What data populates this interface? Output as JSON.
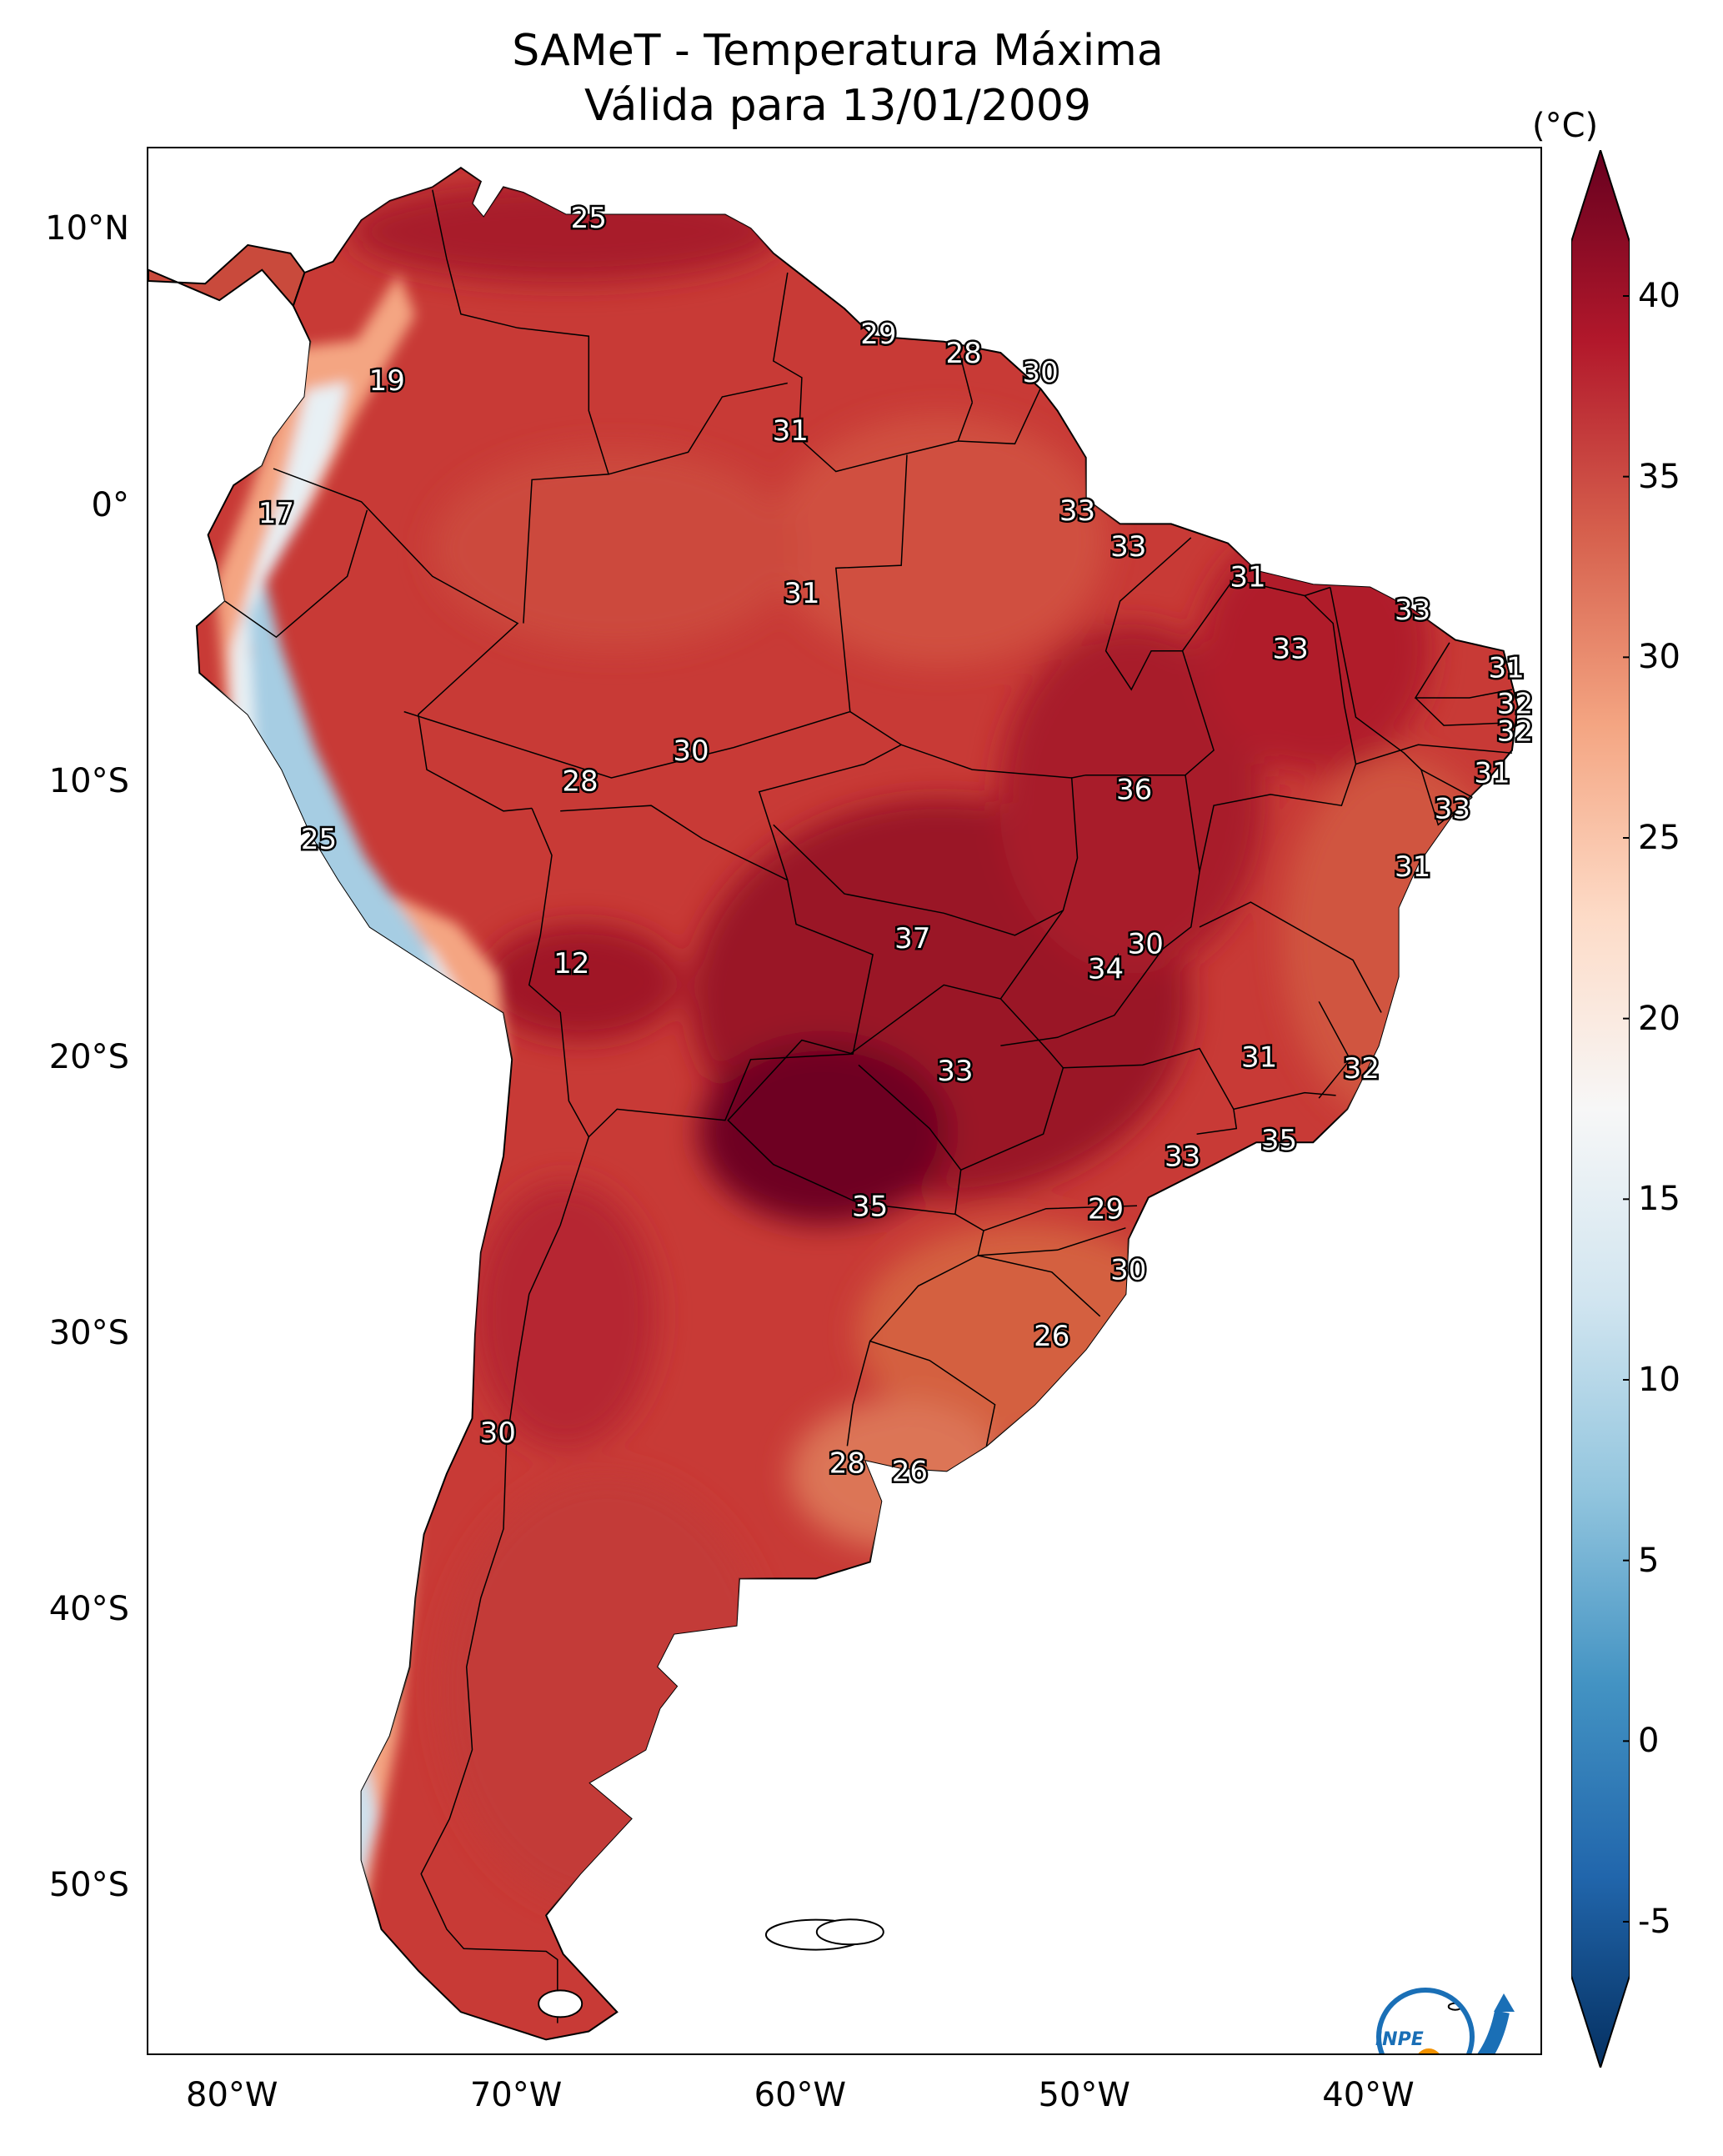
{
  "title": {
    "line1": "SAMeT - Temperatura Máxima",
    "line2": "Válida para 13/01/2009"
  },
  "map": {
    "lat_ticks": [
      {
        "value": 10,
        "label": "10°N"
      },
      {
        "value": 0,
        "label": "0°"
      },
      {
        "value": -10,
        "label": "10°S"
      },
      {
        "value": -20,
        "label": "20°S"
      },
      {
        "value": -30,
        "label": "30°S"
      },
      {
        "value": -40,
        "label": "40°S"
      },
      {
        "value": -50,
        "label": "50°S"
      }
    ],
    "lon_ticks": [
      {
        "value": -80,
        "label": "80°W"
      },
      {
        "value": -70,
        "label": "70°W"
      },
      {
        "value": -60,
        "label": "60°W"
      },
      {
        "value": -50,
        "label": "50°W"
      },
      {
        "value": -40,
        "label": "40°W"
      }
    ],
    "extent": {
      "lon_min": -83,
      "lon_max": -34,
      "lat_min": -56,
      "lat_max": 13
    }
  },
  "colorbar": {
    "unit": "(°C)",
    "ticks": [
      {
        "value": 40,
        "label": "40"
      },
      {
        "value": 35,
        "label": "35"
      },
      {
        "value": 30,
        "label": "30"
      },
      {
        "value": 25,
        "label": "25"
      },
      {
        "value": 20,
        "label": "20"
      },
      {
        "value": 15,
        "label": "15"
      },
      {
        "value": 10,
        "label": "10"
      },
      {
        "value": 5,
        "label": "5"
      },
      {
        "value": 0,
        "label": "0"
      },
      {
        "value": -5,
        "label": "-5"
      }
    ],
    "range": [
      -5,
      40
    ],
    "colors": [
      "#053061",
      "#2166ac",
      "#4393c3",
      "#92c5de",
      "#d1e5f0",
      "#f7f7f7",
      "#fddbc7",
      "#f4a582",
      "#d6604d",
      "#b2182b",
      "#67001f"
    ]
  },
  "city_values": [
    {
      "lon": -67.5,
      "lat": 10.5,
      "value": "25"
    },
    {
      "lon": -57.3,
      "lat": 6.3,
      "value": "29"
    },
    {
      "lon": -54.3,
      "lat": 5.6,
      "value": "28"
    },
    {
      "lon": -51.6,
      "lat": 4.9,
      "value": "30"
    },
    {
      "lon": -74.6,
      "lat": 4.6,
      "value": "19"
    },
    {
      "lon": -60.4,
      "lat": 2.8,
      "value": "31"
    },
    {
      "lon": -78.5,
      "lat": -0.2,
      "value": "17"
    },
    {
      "lon": -50.3,
      "lat": -0.1,
      "value": "33"
    },
    {
      "lon": -48.5,
      "lat": -1.4,
      "value": "33"
    },
    {
      "lon": -44.3,
      "lat": -2.5,
      "value": "31"
    },
    {
      "lon": -60.0,
      "lat": -3.1,
      "value": "31"
    },
    {
      "lon": -38.5,
      "lat": -3.7,
      "value": "33"
    },
    {
      "lon": -42.8,
      "lat": -5.1,
      "value": "33"
    },
    {
      "lon": -35.2,
      "lat": -5.8,
      "value": "31"
    },
    {
      "lon": -34.9,
      "lat": -7.1,
      "value": "32"
    },
    {
      "lon": -34.9,
      "lat": -8.1,
      "value": "32"
    },
    {
      "lon": -63.9,
      "lat": -8.8,
      "value": "30"
    },
    {
      "lon": -35.7,
      "lat": -9.6,
      "value": "31"
    },
    {
      "lon": -67.8,
      "lat": -9.9,
      "value": "28"
    },
    {
      "lon": -48.3,
      "lat": -10.2,
      "value": "36"
    },
    {
      "lon": -37.1,
      "lat": -10.9,
      "value": "33"
    },
    {
      "lon": -77.0,
      "lat": -12.0,
      "value": "25"
    },
    {
      "lon": -38.5,
      "lat": -13.0,
      "value": "31"
    },
    {
      "lon": -56.1,
      "lat": -15.6,
      "value": "37"
    },
    {
      "lon": -47.9,
      "lat": -15.8,
      "value": "30"
    },
    {
      "lon": -49.3,
      "lat": -16.7,
      "value": "34"
    },
    {
      "lon": -68.1,
      "lat": -16.5,
      "value": "12"
    },
    {
      "lon": -43.9,
      "lat": -19.9,
      "value": "31"
    },
    {
      "lon": -40.3,
      "lat": -20.3,
      "value": "32"
    },
    {
      "lon": -54.6,
      "lat": -20.4,
      "value": "33"
    },
    {
      "lon": -43.2,
      "lat": -22.9,
      "value": "35"
    },
    {
      "lon": -46.6,
      "lat": -23.5,
      "value": "33"
    },
    {
      "lon": -57.6,
      "lat": -25.3,
      "value": "35"
    },
    {
      "lon": -49.3,
      "lat": -25.4,
      "value": "29"
    },
    {
      "lon": -48.5,
      "lat": -27.6,
      "value": "30"
    },
    {
      "lon": -51.2,
      "lat": -30.0,
      "value": "26"
    },
    {
      "lon": -70.7,
      "lat": -33.5,
      "value": "30"
    },
    {
      "lon": -58.4,
      "lat": -34.6,
      "value": "28"
    },
    {
      "lon": -56.2,
      "lat": -34.9,
      "value": "26"
    }
  ],
  "logo": {
    "text": "INPE"
  }
}
